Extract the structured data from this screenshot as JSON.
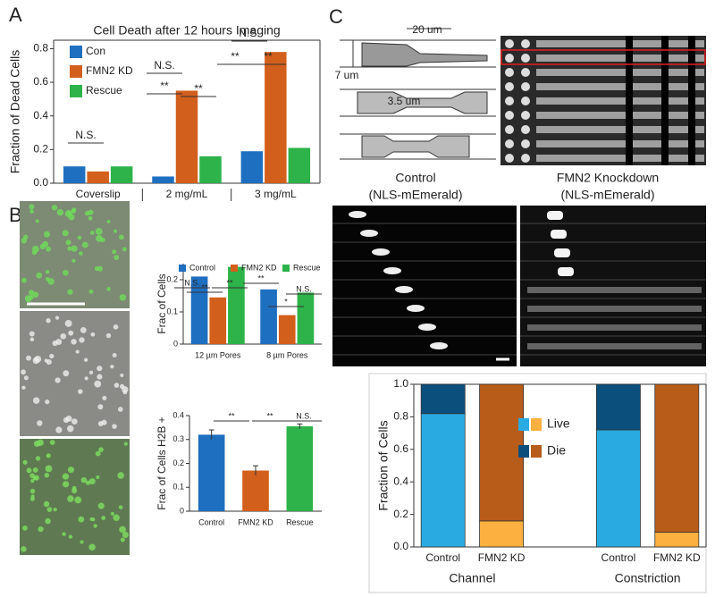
{
  "panel_letters": [
    "A",
    "B",
    "C"
  ],
  "panel_c": {
    "dims": [
      "20 um",
      "7 um",
      "3.5 um"
    ],
    "control_title": [
      "Control",
      "(NLS-mEmerald)"
    ],
    "knockdown_title": [
      "FMN2 Knockdown",
      "(NLS-mEmerald)"
    ]
  },
  "chart_data": [
    {
      "type": "bar",
      "title": "Cell Death after 12 hours Imaging",
      "y_label": "Fraction of Dead Cells",
      "categories": [
        "Coverslip",
        "2 mg/mL",
        "3 mg/mL"
      ],
      "series": [
        {
          "name": "Con",
          "color": "#1f6fc0",
          "values": [
            0.1,
            0.04,
            0.19
          ]
        },
        {
          "name": "FMN2 KD",
          "color": "#d35f1c",
          "values": [
            0.07,
            0.55,
            0.78
          ]
        },
        {
          "name": "Rescue",
          "color": "#2db34a",
          "values": [
            0.1,
            0.16,
            0.21
          ]
        }
      ],
      "ylim": [
        0,
        0.85
      ],
      "yticks": [
        {
          "value": 0,
          "label": "0.0"
        },
        0.2,
        0.4,
        0.6,
        0.8
      ],
      "annotations": [
        "N.S.",
        "N.S.",
        "**",
        "**",
        "N.S.",
        "**",
        "**"
      ]
    },
    {
      "type": "bar",
      "y_label": "Frac of Cells",
      "categories": [
        "12 µm Pores",
        "8 µm Pores"
      ],
      "series": [
        {
          "name": "Control",
          "color": "#1f6fc0",
          "values": [
            0.21,
            0.17
          ]
        },
        {
          "name": "FMN2 KD",
          "color": "#d35f1c",
          "values": [
            0.145,
            0.09
          ]
        },
        {
          "name": "Rescue",
          "color": "#2db34a",
          "values": [
            0.24,
            0.16
          ]
        }
      ],
      "ylim": [
        0,
        0.25
      ],
      "yticks": [
        0,
        0.1,
        0.2
      ],
      "annotations": [
        "N.S.",
        "**",
        "**",
        "**",
        "*",
        "N.S."
      ]
    },
    {
      "type": "bar",
      "y_label": "Frac of Cells H2B +",
      "categories": [
        "Control",
        "FMN2 KD",
        "Rescue"
      ],
      "values": [
        0.32,
        0.17,
        0.355
      ],
      "errors": [
        0.02,
        0.02,
        0.01
      ],
      "colors": [
        "#1f6fc0",
        "#d35f1c",
        "#2db34a"
      ],
      "ylim": [
        0,
        0.4
      ],
      "yticks": [
        0,
        0.1,
        0.2,
        0.3,
        0.4
      ],
      "annotations": [
        "**",
        "**",
        "N.S."
      ]
    },
    {
      "type": "stacked",
      "y_label": "Fraction of Cells",
      "categories": [
        "Control",
        "FMN2 KD",
        "Control",
        "FMN2 KD"
      ],
      "groups": [
        "Channel",
        "Constriction"
      ],
      "series": [
        {
          "name": "Live",
          "colors": [
            "#29abe2",
            "#fbb040",
            "#29abe2",
            "#fbb040"
          ],
          "values": [
            0.82,
            0.16,
            0.72,
            0.09
          ]
        },
        {
          "name": "Die",
          "colors": [
            "#0b4f7c",
            "#b85c1a",
            "#0b4f7c",
            "#b85c1a"
          ],
          "values": [
            0.18,
            0.84,
            0.28,
            0.91
          ]
        }
      ],
      "ylim": [
        0,
        1
      ],
      "yticks": [
        {
          "value": 0,
          "label": "0.0"
        },
        0.2,
        0.4,
        0.6,
        0.8,
        {
          "value": 1,
          "label": "1.0"
        }
      ]
    }
  ]
}
